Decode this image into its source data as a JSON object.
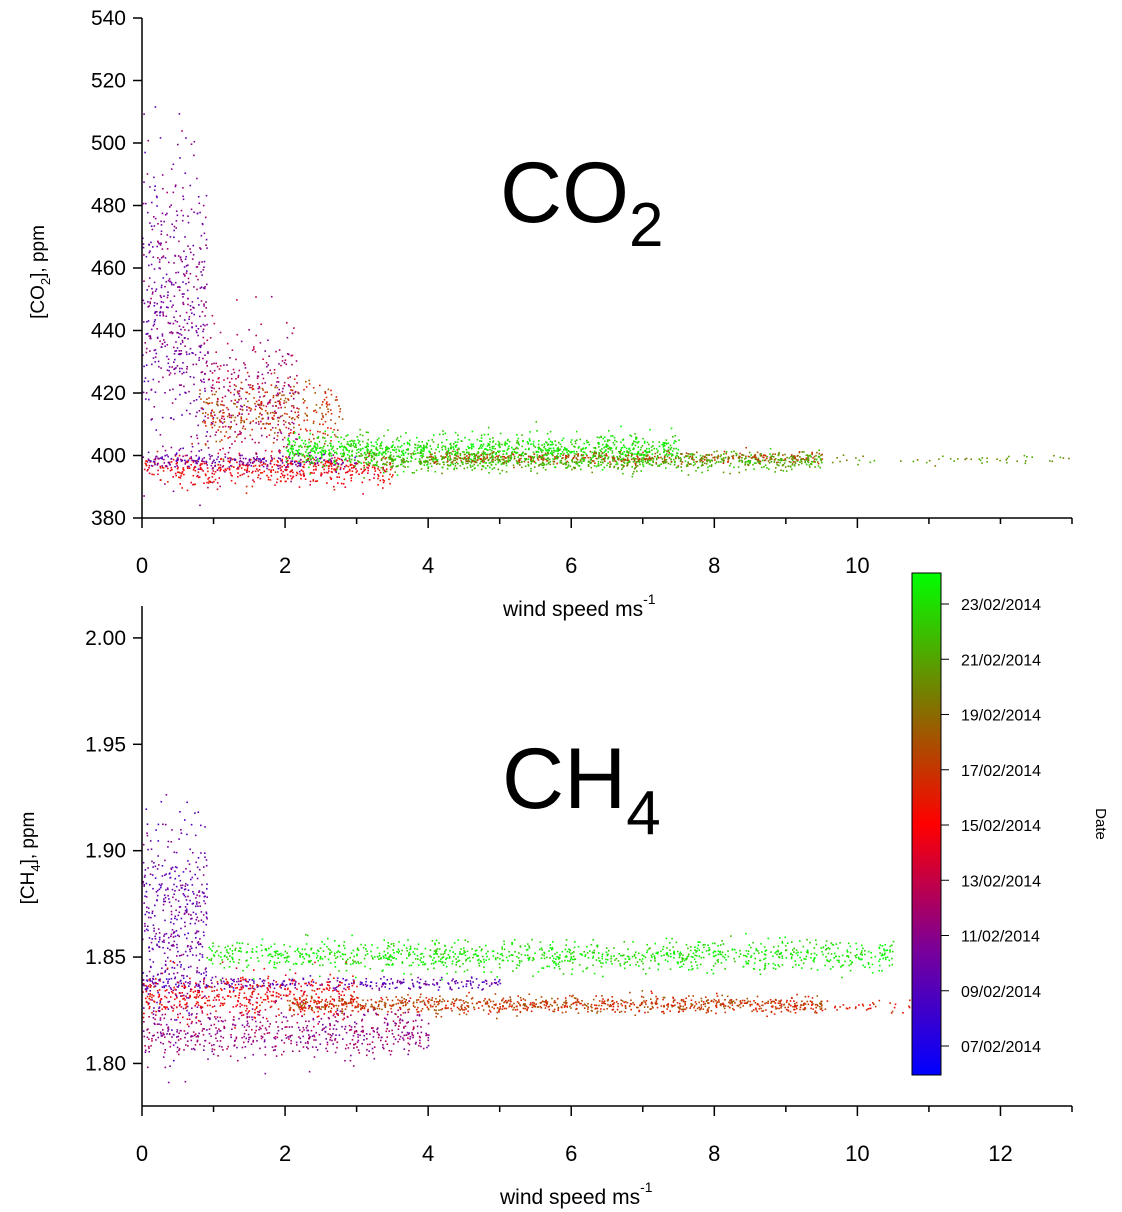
{
  "chart_data": [
    {
      "type": "scatter",
      "panel_label": {
        "main": "CO",
        "sub": "2"
      },
      "xlabel": {
        "main": "wind speed ms",
        "sup": "-1"
      },
      "ylabel": {
        "pre": "[CO",
        "sub": "2",
        "post": "], ppm"
      },
      "xlim": [
        0,
        13
      ],
      "ylim": [
        380,
        540
      ],
      "x_ticks": [
        0,
        2,
        4,
        6,
        8,
        10
      ],
      "x_tick_labels": [
        "0",
        "2",
        "4",
        "6",
        "8",
        "10"
      ],
      "y_ticks": [
        380,
        400,
        420,
        440,
        460,
        480,
        500,
        520,
        540
      ],
      "y_tick_labels": [
        "380",
        "400",
        "420",
        "440",
        "460",
        "480",
        "500",
        "520",
        "540"
      ],
      "clusters": [
        {
          "date_frac": 0.25,
          "x_range": [
            0.0,
            0.9
          ],
          "y_mean": 448,
          "y_sd": 22,
          "n": 520
        },
        {
          "date_frac": 0.33,
          "x_range": [
            0.9,
            2.2
          ],
          "y_mean": 418,
          "y_sd": 11,
          "n": 320
        },
        {
          "date_frac": 0.5,
          "x_range": [
            0.0,
            3.5
          ],
          "y_mean": 396,
          "y_sd": 2.5,
          "n": 500
        },
        {
          "date_frac": 0.22,
          "x_range": [
            0.0,
            3.0
          ],
          "y_mean": 398.5,
          "y_sd": 1.2,
          "n": 220
        },
        {
          "date_frac": 0.62,
          "x_range": [
            0.8,
            2.8
          ],
          "y_mean": 414,
          "y_sd": 5,
          "n": 300
        },
        {
          "date_frac": 0.95,
          "x_range": [
            2.0,
            7.5
          ],
          "y_mean": 402,
          "y_sd": 2.5,
          "n": 1100
        },
        {
          "date_frac": 0.85,
          "x_range": [
            3.0,
            9.5
          ],
          "y_mean": 398.5,
          "y_sd": 1.5,
          "n": 800
        },
        {
          "date_frac": 0.65,
          "x_range": [
            4.0,
            9.5
          ],
          "y_mean": 399.5,
          "y_sd": 1.0,
          "n": 350
        },
        {
          "date_frac": 0.8,
          "x_range": [
            9.0,
            13.0
          ],
          "y_mean": 399,
          "y_sd": 0.8,
          "n": 60
        }
      ]
    },
    {
      "type": "scatter",
      "panel_label": {
        "main": "CH",
        "sub": "4"
      },
      "xlabel": {
        "main": "wind speed ms",
        "sup": "-1"
      },
      "ylabel": {
        "pre": "[CH",
        "sub": "4",
        "post": "], ppm"
      },
      "xlim": [
        0,
        13
      ],
      "ylim": [
        1.78,
        2.015
      ],
      "x_ticks": [
        0,
        2,
        4,
        6,
        8,
        10,
        12
      ],
      "x_tick_labels": [
        "0",
        "2",
        "4",
        "6",
        "8",
        "10",
        "12"
      ],
      "y_ticks": [
        1.8,
        1.85,
        1.9,
        1.95,
        2.0
      ],
      "y_tick_labels": [
        "1.80",
        "1.85",
        "1.90",
        "1.95",
        "2.00"
      ],
      "clusters": [
        {
          "date_frac": 0.22,
          "x_range": [
            0.0,
            0.9
          ],
          "y_mean": 1.865,
          "y_sd": 0.025,
          "n": 450
        },
        {
          "date_frac": 0.96,
          "x_range": [
            0.9,
            10.5
          ],
          "y_mean": 1.851,
          "y_sd": 0.0035,
          "n": 1100
        },
        {
          "date_frac": 0.2,
          "x_range": [
            0.0,
            5.0
          ],
          "y_mean": 1.838,
          "y_sd": 0.0015,
          "n": 300
        },
        {
          "date_frac": 0.5,
          "x_range": [
            0.0,
            3.0
          ],
          "y_mean": 1.832,
          "y_sd": 0.005,
          "n": 450
        },
        {
          "date_frac": 0.62,
          "x_range": [
            2.0,
            9.5
          ],
          "y_mean": 1.828,
          "y_sd": 0.002,
          "n": 900
        },
        {
          "date_frac": 0.3,
          "x_range": [
            0.0,
            4.0
          ],
          "y_mean": 1.815,
          "y_sd": 0.006,
          "n": 600
        },
        {
          "date_frac": 0.55,
          "x_range": [
            9.0,
            11.0
          ],
          "y_mean": 1.827,
          "y_sd": 0.0015,
          "n": 60
        }
      ]
    }
  ],
  "colorbar": {
    "title": "Date",
    "labels": [
      "23/02/2014",
      "21/02/2014",
      "19/02/2014",
      "17/02/2014",
      "15/02/2014",
      "13/02/2014",
      "11/02/2014",
      "09/02/2014",
      "07/02/2014"
    ],
    "colors": [
      "#0000ff",
      "#7a0099",
      "#ff0000",
      "#7a7a00",
      "#00ff00"
    ]
  }
}
